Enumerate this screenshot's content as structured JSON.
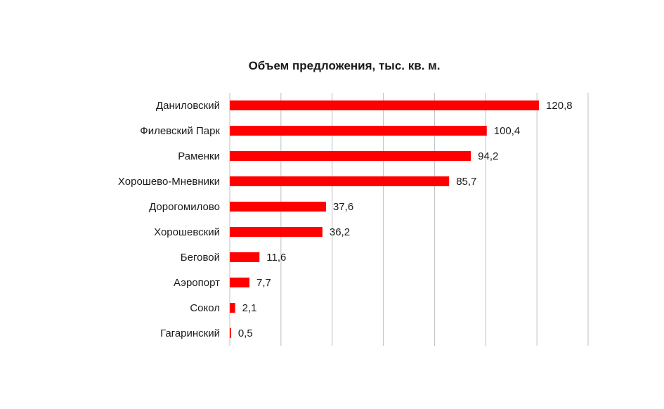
{
  "chart_data": {
    "type": "bar",
    "orientation": "horizontal",
    "title": "Объем предложения, тыс. кв. м.",
    "categories": [
      "Даниловский",
      "Филевский Парк",
      "Раменки",
      "Хорошево-Мневники",
      "Дорогомилово",
      "Хорошевский",
      "Беговой",
      "Аэропорт",
      "Сокол",
      "Гагаринский"
    ],
    "values": [
      120.8,
      100.4,
      94.2,
      85.7,
      37.6,
      36.2,
      11.6,
      7.7,
      2.1,
      0.5
    ],
    "value_labels": [
      "120,8",
      "100,4",
      "94,2",
      "85,7",
      "37,6",
      "36,2",
      "11,6",
      "7,7",
      "2,1",
      "0,5"
    ],
    "xlim": [
      0,
      140
    ],
    "grid": true,
    "bar_color": "#ff0000",
    "grid_color": "#bfbfbf"
  }
}
